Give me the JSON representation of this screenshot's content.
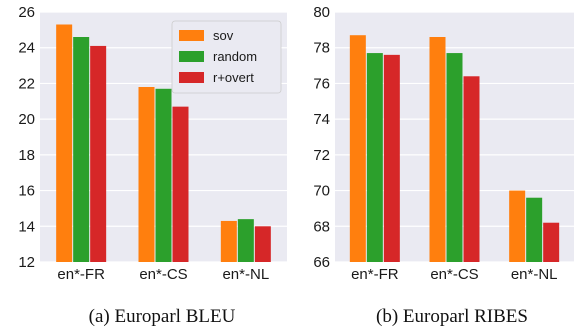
{
  "colors": {
    "sov": "#ff7f0e",
    "random": "#2ca02c",
    "r+overt": "#d62728",
    "plot_background": "#eaeaf2",
    "grid": "#ffffff"
  },
  "chart_data": [
    {
      "type": "bar",
      "caption": "(a) Europarl BLEU",
      "categories": [
        "en*-FR",
        "en*-CS",
        "en*-NL"
      ],
      "series": [
        {
          "name": "sov",
          "values": [
            25.3,
            21.8,
            14.3
          ]
        },
        {
          "name": "random",
          "values": [
            24.6,
            21.7,
            14.4
          ]
        },
        {
          "name": "r+overt",
          "values": [
            24.1,
            20.7,
            14.0
          ]
        }
      ],
      "ylim": [
        12,
        26
      ],
      "yticks": [
        12,
        14,
        16,
        18,
        20,
        22,
        24,
        26
      ],
      "grid": true,
      "legend": "top-right"
    },
    {
      "type": "bar",
      "caption": "(b) Europarl RIBES",
      "categories": [
        "en*-FR",
        "en*-CS",
        "en*-NL"
      ],
      "series": [
        {
          "name": "sov",
          "values": [
            78.7,
            78.6,
            70.0
          ]
        },
        {
          "name": "random",
          "values": [
            77.7,
            77.7,
            69.6
          ]
        },
        {
          "name": "r+overt",
          "values": [
            77.6,
            76.4,
            68.2
          ]
        }
      ],
      "ylim": [
        66,
        80
      ],
      "yticks": [
        66,
        68,
        70,
        72,
        74,
        76,
        78,
        80
      ],
      "grid": true,
      "legend": "none"
    }
  ]
}
